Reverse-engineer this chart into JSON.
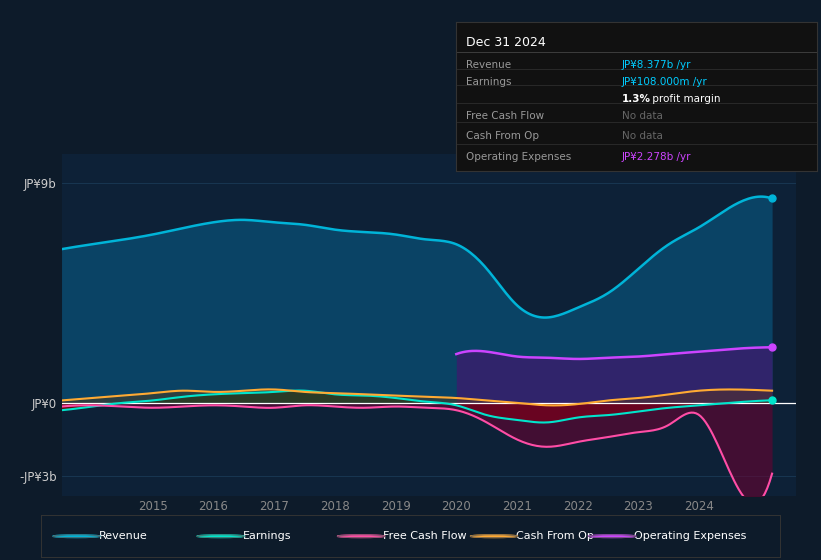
{
  "bg_color": "#0d1b2a",
  "plot_bg": "#0d2137",
  "revenue_color": "#00b4d8",
  "revenue_fill": "#0a4a6e",
  "earnings_color": "#00e5cc",
  "fcf_color": "#ff4da6",
  "cop_color": "#ffaa33",
  "opex_color": "#cc44ff",
  "opex_fill": "#3d1a6e",
  "earnings_fill_neg": "#8b0000",
  "earnings_fill_pos": "#003300",
  "fcf_fill": "#6e0030",
  "cop_fill_pos": "#6e3a00",
  "zero_line_color": "#ffffff",
  "grid_color": "#1a3a55",
  "x_tick_color": "#888888",
  "y_tick_color": "#cccccc",
  "legend_bg": "#0d1b2a",
  "legend_border": "#333333",
  "info_bg": "#111111",
  "info_border": "#333333",
  "legend_items": [
    {
      "label": "Revenue",
      "color": "#00b4d8"
    },
    {
      "label": "Earnings",
      "color": "#00e5cc"
    },
    {
      "label": "Free Cash Flow",
      "color": "#ff4da6"
    },
    {
      "label": "Cash From Op",
      "color": "#ffaa33"
    },
    {
      "label": "Operating Expenses",
      "color": "#cc44ff"
    }
  ],
  "x_ticks": [
    2015,
    2016,
    2017,
    2018,
    2019,
    2020,
    2021,
    2022,
    2023,
    2024
  ],
  "yticks": [
    9,
    0,
    -3
  ],
  "ytick_labels": [
    "JP¥9b",
    "JP¥0",
    "-JP¥3b"
  ],
  "xlim": [
    2013.5,
    2025.6
  ],
  "ylim": [
    -3.8,
    10.2
  ],
  "revenue_x": [
    2013.5,
    2014.0,
    2015.0,
    2016.0,
    2016.5,
    2017.0,
    2017.5,
    2018.0,
    2018.5,
    2019.0,
    2019.5,
    2020.0,
    2020.5,
    2021.0,
    2021.5,
    2022.0,
    2022.5,
    2023.0,
    2023.5,
    2024.0,
    2024.5,
    2025.2
  ],
  "revenue_y": [
    6.3,
    6.5,
    6.9,
    7.4,
    7.5,
    7.4,
    7.3,
    7.1,
    7.0,
    6.9,
    6.7,
    6.5,
    5.5,
    4.0,
    3.5,
    3.9,
    4.5,
    5.5,
    6.5,
    7.2,
    8.0,
    8.377
  ],
  "earnings_x": [
    2013.5,
    2014.0,
    2014.5,
    2015.0,
    2015.5,
    2016.0,
    2016.5,
    2017.0,
    2017.5,
    2018.0,
    2018.5,
    2019.0,
    2019.5,
    2020.0,
    2020.5,
    2021.0,
    2021.5,
    2022.0,
    2022.5,
    2023.0,
    2023.5,
    2024.0,
    2024.5,
    2025.2
  ],
  "earnings_y": [
    -0.3,
    -0.15,
    0.0,
    0.1,
    0.25,
    0.35,
    0.4,
    0.45,
    0.5,
    0.35,
    0.3,
    0.2,
    0.05,
    -0.1,
    -0.5,
    -0.7,
    -0.8,
    -0.6,
    -0.5,
    -0.35,
    -0.2,
    -0.1,
    0.0,
    0.108
  ],
  "fcf_x": [
    2013.5,
    2014.0,
    2014.5,
    2015.0,
    2015.5,
    2016.0,
    2016.5,
    2017.0,
    2017.5,
    2018.0,
    2018.5,
    2019.0,
    2019.5,
    2020.0,
    2020.5,
    2021.0,
    2021.5,
    2022.0,
    2022.5,
    2023.0,
    2023.5,
    2024.0,
    2024.5,
    2025.2
  ],
  "fcf_y": [
    -0.15,
    -0.1,
    -0.15,
    -0.2,
    -0.15,
    -0.1,
    -0.15,
    -0.2,
    -0.1,
    -0.15,
    -0.2,
    -0.15,
    -0.2,
    -0.3,
    -0.8,
    -1.5,
    -1.8,
    -1.6,
    -1.4,
    -1.2,
    -0.9,
    -0.5,
    -2.8,
    -2.9
  ],
  "cop_x": [
    2013.5,
    2014.0,
    2014.5,
    2015.0,
    2015.5,
    2016.0,
    2016.5,
    2017.0,
    2017.5,
    2018.0,
    2018.5,
    2019.0,
    2019.5,
    2020.0,
    2020.5,
    2021.0,
    2021.5,
    2022.0,
    2022.5,
    2023.0,
    2023.5,
    2024.0,
    2024.5,
    2025.2
  ],
  "cop_y": [
    0.1,
    0.2,
    0.3,
    0.4,
    0.5,
    0.45,
    0.5,
    0.55,
    0.45,
    0.4,
    0.35,
    0.3,
    0.25,
    0.2,
    0.1,
    0.0,
    -0.1,
    -0.05,
    0.1,
    0.2,
    0.35,
    0.5,
    0.55,
    0.5
  ],
  "opex_x": [
    2020.0,
    2020.5,
    2021.0,
    2021.5,
    2022.0,
    2022.5,
    2023.0,
    2023.5,
    2024.0,
    2024.5,
    2025.2
  ],
  "opex_y": [
    2.0,
    2.1,
    1.9,
    1.85,
    1.8,
    1.85,
    1.9,
    2.0,
    2.1,
    2.2,
    2.278
  ]
}
